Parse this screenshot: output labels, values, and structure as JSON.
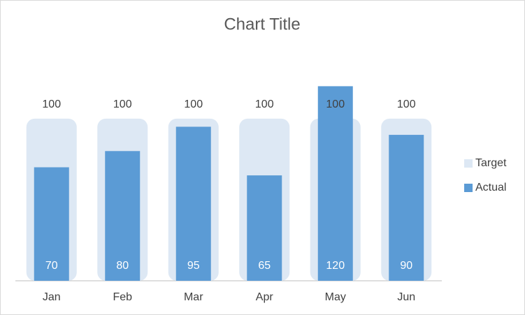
{
  "chart_data": {
    "type": "bar",
    "title": "Chart Title",
    "categories": [
      "Jan",
      "Feb",
      "Mar",
      "Apr",
      "May",
      "Jun"
    ],
    "series": [
      {
        "name": "Target",
        "color": "#dde8f4",
        "values": [
          100,
          100,
          100,
          100,
          100,
          100
        ]
      },
      {
        "name": "Actual",
        "color": "#5b9bd5",
        "values": [
          70,
          80,
          95,
          65,
          120,
          90
        ]
      }
    ],
    "ylim": [
      0,
      140
    ]
  }
}
